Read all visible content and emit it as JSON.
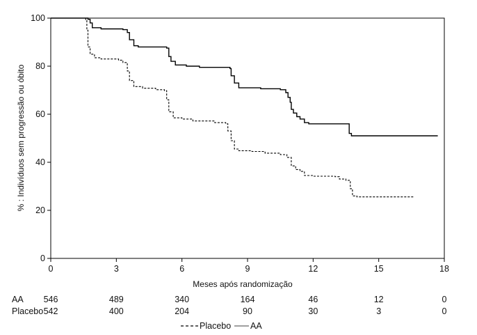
{
  "chart_data": {
    "type": "line",
    "xlabel": "Meses após randomização",
    "ylabel": "% : Indivíduos sem progressão ou óbito",
    "xlim": [
      0,
      18
    ],
    "ylim": [
      0,
      100
    ],
    "xticks": [
      "0",
      "3",
      "6",
      "9",
      "12",
      "15",
      "18"
    ],
    "yticks": [
      "0",
      "20",
      "40",
      "60",
      "80",
      "100"
    ],
    "grid": false,
    "legend_position": "bottom-center",
    "series": [
      {
        "name": "AA",
        "style": "solid",
        "color": "#000000",
        "points": [
          [
            0,
            100
          ],
          [
            1.7,
            99.5
          ],
          [
            1.8,
            98
          ],
          [
            1.9,
            96
          ],
          [
            2.3,
            95.5
          ],
          [
            3.3,
            95.2
          ],
          [
            3.5,
            94
          ],
          [
            3.6,
            91
          ],
          [
            3.8,
            88.5
          ],
          [
            4.0,
            88
          ],
          [
            5.3,
            87.5
          ],
          [
            5.4,
            84
          ],
          [
            5.5,
            82
          ],
          [
            5.7,
            80.5
          ],
          [
            6.2,
            80
          ],
          [
            6.8,
            79.5
          ],
          [
            8.2,
            79
          ],
          [
            8.25,
            76
          ],
          [
            8.4,
            73
          ],
          [
            8.6,
            71
          ],
          [
            9.6,
            70.6
          ],
          [
            10.5,
            70.2
          ],
          [
            10.75,
            69
          ],
          [
            10.85,
            67
          ],
          [
            10.95,
            65
          ],
          [
            11.0,
            62
          ],
          [
            11.1,
            60.5
          ],
          [
            11.25,
            59
          ],
          [
            11.4,
            58
          ],
          [
            11.6,
            56.5
          ],
          [
            11.8,
            56
          ],
          [
            13.65,
            55.8
          ],
          [
            13.65,
            52
          ],
          [
            13.75,
            51
          ],
          [
            14.2,
            51
          ],
          [
            17.7,
            51
          ]
        ]
      },
      {
        "name": "Placebo",
        "style": "dashed",
        "color": "#000000",
        "points": [
          [
            0,
            100
          ],
          [
            1.6,
            99
          ],
          [
            1.65,
            95
          ],
          [
            1.7,
            88
          ],
          [
            1.8,
            85
          ],
          [
            2.0,
            83.5
          ],
          [
            2.3,
            83
          ],
          [
            3.1,
            82.5
          ],
          [
            3.3,
            81.5
          ],
          [
            3.5,
            78
          ],
          [
            3.6,
            74
          ],
          [
            3.8,
            71.5
          ],
          [
            4.2,
            70.8
          ],
          [
            4.8,
            70.2
          ],
          [
            5.2,
            69.8
          ],
          [
            5.3,
            66
          ],
          [
            5.4,
            61
          ],
          [
            5.6,
            58.5
          ],
          [
            6.0,
            58
          ],
          [
            6.5,
            57.2
          ],
          [
            7.5,
            56.5
          ],
          [
            8.0,
            56
          ],
          [
            8.1,
            53
          ],
          [
            8.25,
            49
          ],
          [
            8.4,
            45.5
          ],
          [
            8.6,
            44.8
          ],
          [
            9.2,
            44.5
          ],
          [
            9.8,
            43.8
          ],
          [
            10.5,
            43.2
          ],
          [
            10.8,
            42
          ],
          [
            11.0,
            38.5
          ],
          [
            11.2,
            37
          ],
          [
            11.4,
            36.2
          ],
          [
            11.6,
            34.5
          ],
          [
            12.0,
            34.2
          ],
          [
            13.0,
            34
          ],
          [
            13.2,
            33
          ],
          [
            13.5,
            32.5
          ],
          [
            13.7,
            29
          ],
          [
            13.8,
            26
          ],
          [
            14.0,
            25.6
          ],
          [
            16.6,
            25.6
          ]
        ]
      }
    ]
  },
  "risk_table": {
    "rows": [
      {
        "label": "AA",
        "values": [
          "546",
          "489",
          "340",
          "164",
          "46",
          "12",
          "0"
        ]
      },
      {
        "label": "Placebo",
        "values": [
          "542",
          "400",
          "204",
          "90",
          "30",
          "3",
          "0"
        ]
      }
    ]
  },
  "legend": {
    "items": [
      {
        "label": "Placebo",
        "style": "dashed"
      },
      {
        "label": "AA",
        "style": "solid"
      }
    ]
  }
}
